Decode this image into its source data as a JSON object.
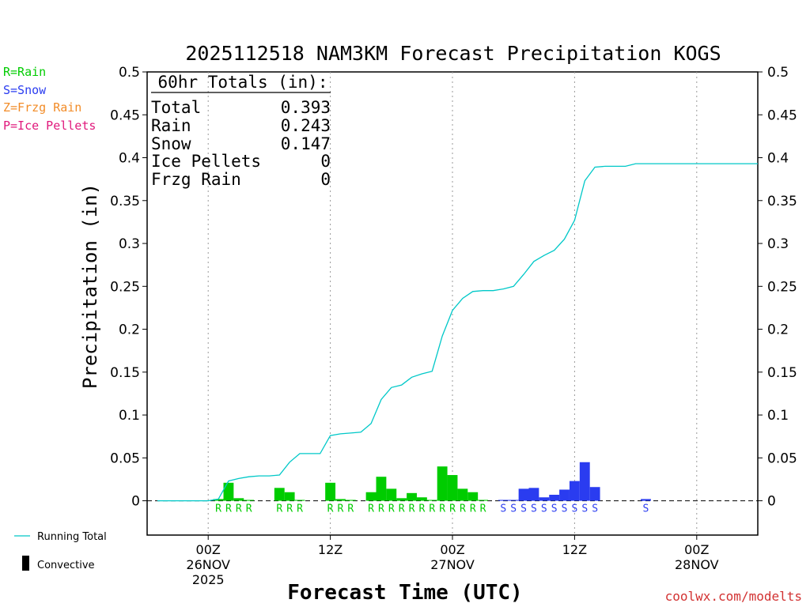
{
  "chart_data": {
    "type": "bar",
    "title": "2025112518 NAM3KM Forecast Precipitation KOGS",
    "xlabel": "Forecast Time (UTC)",
    "ylabel": "Precipitation (in)",
    "ylim": [
      -0.04,
      0.5
    ],
    "y_ticks": [
      0,
      0.05,
      0.1,
      0.15,
      0.2,
      0.25,
      0.3,
      0.35,
      0.4,
      0.45,
      0.5
    ],
    "y_tick_labels": [
      "0",
      "0.05",
      "0.1",
      "0.15",
      "0.2",
      "0.25",
      "0.3",
      "0.35",
      "0.4",
      "0.45",
      "0.5"
    ],
    "xlim_hours_from_00z_26nov": [
      -6,
      54
    ],
    "x_ticks": [
      {
        "hour": 0,
        "line1": "00Z",
        "line2": "26NOV",
        "line3": "2025"
      },
      {
        "hour": 12,
        "line1": "12Z",
        "line2": "",
        "line3": ""
      },
      {
        "hour": 24,
        "line1": "00Z",
        "line2": "27NOV",
        "line3": ""
      },
      {
        "hour": 36,
        "line1": "12Z",
        "line2": "",
        "line3": ""
      },
      {
        "hour": 48,
        "line1": "00Z",
        "line2": "28NOV",
        "line3": ""
      }
    ],
    "bar_series": [
      {
        "name": "Rain",
        "color": "#00cc00",
        "letter": "R",
        "hours": [
          1,
          2,
          3,
          4,
          7,
          8,
          9,
          12,
          13,
          14,
          16,
          17,
          18,
          19,
          20,
          21,
          22,
          23,
          24,
          25,
          26,
          27
        ],
        "values": [
          0.002,
          0.021,
          0.003,
          0.001,
          0.015,
          0.01,
          0.001,
          0.021,
          0.002,
          0.001,
          0.01,
          0.028,
          0.014,
          0.003,
          0.009,
          0.004,
          0.001,
          0.04,
          0.03,
          0.014,
          0.01,
          0.001
        ]
      },
      {
        "name": "Snow",
        "color": "#2a3cf0",
        "letter": "S",
        "hours": [
          29,
          30,
          31,
          32,
          33,
          34,
          35,
          36,
          37,
          38,
          43
        ],
        "values": [
          0.001,
          0.001,
          0.014,
          0.015,
          0.004,
          0.007,
          0.013,
          0.023,
          0.045,
          0.016,
          0.002
        ]
      }
    ],
    "running_total": {
      "name": "Running Total",
      "color": "#00c8c8",
      "hours": [
        -5,
        0,
        1,
        2,
        3,
        4,
        5,
        6,
        7,
        8,
        9,
        10,
        11,
        12,
        13,
        14,
        15,
        16,
        17,
        18,
        19,
        20,
        21,
        22,
        23,
        24,
        25,
        26,
        27,
        28,
        29,
        30,
        31,
        32,
        33,
        34,
        35,
        36,
        37,
        38,
        39,
        40,
        41,
        42,
        43,
        44,
        45,
        46,
        47,
        48,
        49,
        50,
        51,
        52,
        53,
        54
      ],
      "values": [
        0,
        0,
        0.002,
        0.023,
        0.026,
        0.028,
        0.029,
        0.029,
        0.03,
        0.045,
        0.055,
        0.055,
        0.055,
        0.076,
        0.078,
        0.079,
        0.08,
        0.09,
        0.118,
        0.132,
        0.135,
        0.144,
        0.148,
        0.151,
        0.192,
        0.222,
        0.236,
        0.244,
        0.245,
        0.245,
        0.247,
        0.25,
        0.264,
        0.279,
        0.286,
        0.292,
        0.305,
        0.327,
        0.373,
        0.389,
        0.39,
        0.39,
        0.39,
        0.393,
        0.393,
        0.393,
        0.393,
        0.393,
        0.393,
        0.393,
        0.393,
        0.393,
        0.393,
        0.393,
        0.393,
        0.393
      ]
    }
  },
  "totals_box": {
    "header": "60hr Totals (in):",
    "rows": [
      {
        "label": "Total",
        "value": "0.393"
      },
      {
        "label": "Rain",
        "value": "0.243"
      },
      {
        "label": "Snow",
        "value": "0.147"
      },
      {
        "label": "Ice Pellets",
        "value": "0"
      },
      {
        "label": "Frzg Rain",
        "value": "0"
      }
    ]
  },
  "legend_top": [
    {
      "text": "R=Rain",
      "color": "#00cc00"
    },
    {
      "text": "S=Snow",
      "color": "#2a3cf0"
    },
    {
      "text": "Z=Frzg Rain",
      "color": "#f28c28"
    },
    {
      "text": "P=Ice Pellets",
      "color": "#e0197c"
    }
  ],
  "legend_bottom": {
    "running_total_label": "Running Total",
    "convective_label": "Convective"
  },
  "credit": "coolwx.com/modelts"
}
